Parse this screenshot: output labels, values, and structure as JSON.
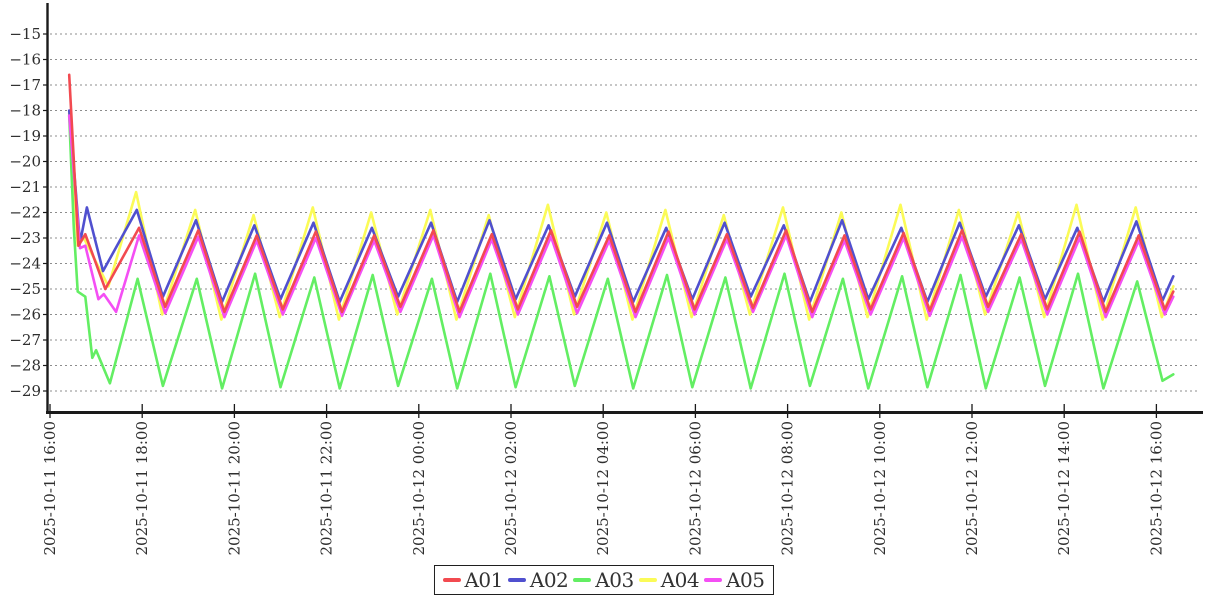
{
  "figure": {
    "background": "#ffffff",
    "axis_color": "#1a1a1a",
    "grid_color": "#8c8c8c",
    "text_color": "#2e2e2e"
  },
  "chart_data": {
    "type": "line",
    "title": "",
    "xlabel": "",
    "ylabel": "",
    "grid": "horizontal-dotted",
    "legend_position": "bottom-center",
    "x_unit": "minutes after 2025-10-11 16:00",
    "xlim_minutes": [
      0,
      1500
    ],
    "ylim": [
      -29.9,
      -13.8
    ],
    "x_ticks": [
      {
        "t": 0,
        "label": "2025-10-11 16:00"
      },
      {
        "t": 120,
        "label": "2025-10-11 18:00"
      },
      {
        "t": 240,
        "label": "2025-10-11 20:00"
      },
      {
        "t": 360,
        "label": "2025-10-11 22:00"
      },
      {
        "t": 480,
        "label": "2025-10-12 00:00"
      },
      {
        "t": 600,
        "label": "2025-10-12 02:00"
      },
      {
        "t": 720,
        "label": "2025-10-12 04:00"
      },
      {
        "t": 840,
        "label": "2025-10-12 06:00"
      },
      {
        "t": 960,
        "label": "2025-10-12 08:00"
      },
      {
        "t": 1080,
        "label": "2025-10-12 10:00"
      },
      {
        "t": 1200,
        "label": "2025-10-12 12:00"
      },
      {
        "t": 1320,
        "label": "2025-10-12 14:00"
      },
      {
        "t": 1440,
        "label": "2025-10-12 16:00"
      }
    ],
    "y_ticks": [
      {
        "v": -15,
        "label": "−15"
      },
      {
        "v": -16,
        "label": "−16"
      },
      {
        "v": -17,
        "label": "−17"
      },
      {
        "v": -18,
        "label": "−18"
      },
      {
        "v": -19,
        "label": "−19"
      },
      {
        "v": -20,
        "label": "−20"
      },
      {
        "v": -21,
        "label": "−21"
      },
      {
        "v": -22,
        "label": "−22"
      },
      {
        "v": -23,
        "label": "−23"
      },
      {
        "v": -24,
        "label": "−24"
      },
      {
        "v": -25,
        "label": "−25"
      },
      {
        "v": -26,
        "label": "−26"
      },
      {
        "v": -27,
        "label": "−27"
      },
      {
        "v": -28,
        "label": "−28"
      },
      {
        "v": -29,
        "label": "−29"
      }
    ],
    "series": [
      {
        "name": "A01",
        "color": "#f24a50",
        "points": [
          [
            25,
            -16.6
          ],
          [
            37,
            -23.3
          ],
          [
            46,
            -22.85
          ],
          [
            72,
            -25.0
          ],
          [
            116,
            -22.6
          ],
          [
            150,
            -25.7
          ],
          [
            193,
            -22.7
          ],
          [
            227,
            -25.9
          ],
          [
            269,
            -22.9
          ],
          [
            303,
            -25.8
          ],
          [
            346,
            -22.75
          ],
          [
            380,
            -25.9
          ],
          [
            422,
            -22.9
          ],
          [
            456,
            -25.7
          ],
          [
            499,
            -22.7
          ],
          [
            533,
            -25.9
          ],
          [
            575,
            -22.85
          ],
          [
            609,
            -25.8
          ],
          [
            652,
            -22.7
          ],
          [
            686,
            -25.7
          ],
          [
            728,
            -22.9
          ],
          [
            762,
            -25.9
          ],
          [
            805,
            -22.75
          ],
          [
            839,
            -25.8
          ],
          [
            881,
            -22.85
          ],
          [
            915,
            -25.75
          ],
          [
            958,
            -22.7
          ],
          [
            992,
            -25.9
          ],
          [
            1034,
            -22.9
          ],
          [
            1068,
            -25.8
          ],
          [
            1111,
            -22.8
          ],
          [
            1145,
            -25.85
          ],
          [
            1187,
            -22.7
          ],
          [
            1221,
            -25.7
          ],
          [
            1264,
            -22.85
          ],
          [
            1298,
            -25.8
          ],
          [
            1340,
            -22.75
          ],
          [
            1374,
            -25.9
          ],
          [
            1417,
            -22.9
          ],
          [
            1451,
            -25.8
          ],
          [
            1462,
            -25.1
          ]
        ]
      },
      {
        "name": "A02",
        "color": "#5050cf",
        "points": [
          [
            25,
            -18.0
          ],
          [
            39,
            -23.2
          ],
          [
            48,
            -21.8
          ],
          [
            69,
            -24.3
          ],
          [
            113,
            -21.9
          ],
          [
            147,
            -25.3
          ],
          [
            190,
            -22.3
          ],
          [
            224,
            -25.5
          ],
          [
            266,
            -22.5
          ],
          [
            300,
            -25.4
          ],
          [
            343,
            -22.4
          ],
          [
            377,
            -25.5
          ],
          [
            419,
            -22.6
          ],
          [
            453,
            -25.3
          ],
          [
            496,
            -22.4
          ],
          [
            530,
            -25.5
          ],
          [
            572,
            -22.3
          ],
          [
            606,
            -25.4
          ],
          [
            649,
            -22.5
          ],
          [
            683,
            -25.3
          ],
          [
            725,
            -22.4
          ],
          [
            759,
            -25.5
          ],
          [
            802,
            -22.6
          ],
          [
            836,
            -25.4
          ],
          [
            878,
            -22.4
          ],
          [
            912,
            -25.3
          ],
          [
            955,
            -22.5
          ],
          [
            989,
            -25.5
          ],
          [
            1031,
            -22.3
          ],
          [
            1065,
            -25.4
          ],
          [
            1108,
            -22.6
          ],
          [
            1142,
            -25.5
          ],
          [
            1184,
            -22.4
          ],
          [
            1218,
            -25.3
          ],
          [
            1261,
            -22.5
          ],
          [
            1295,
            -25.4
          ],
          [
            1337,
            -22.6
          ],
          [
            1371,
            -25.5
          ],
          [
            1414,
            -22.35
          ],
          [
            1448,
            -25.45
          ],
          [
            1462,
            -24.5
          ]
        ]
      },
      {
        "name": "A03",
        "color": "#63ee63",
        "points": [
          [
            25,
            -18.2
          ],
          [
            31,
            -22.6
          ],
          [
            36,
            -25.1
          ],
          [
            46,
            -25.3
          ],
          [
            55,
            -27.7
          ],
          [
            60,
            -27.4
          ],
          [
            78,
            -28.7
          ],
          [
            114,
            -24.6
          ],
          [
            147,
            -28.8
          ],
          [
            191,
            -24.6
          ],
          [
            224,
            -28.9
          ],
          [
            267,
            -24.4
          ],
          [
            300,
            -28.85
          ],
          [
            344,
            -24.55
          ],
          [
            377,
            -28.9
          ],
          [
            420,
            -24.45
          ],
          [
            453,
            -28.8
          ],
          [
            497,
            -24.6
          ],
          [
            530,
            -28.9
          ],
          [
            573,
            -24.4
          ],
          [
            606,
            -28.85
          ],
          [
            650,
            -24.5
          ],
          [
            683,
            -28.8
          ],
          [
            726,
            -24.6
          ],
          [
            759,
            -28.9
          ],
          [
            803,
            -24.45
          ],
          [
            836,
            -28.85
          ],
          [
            879,
            -24.55
          ],
          [
            912,
            -28.9
          ],
          [
            956,
            -24.4
          ],
          [
            989,
            -28.8
          ],
          [
            1032,
            -24.6
          ],
          [
            1065,
            -28.9
          ],
          [
            1109,
            -24.5
          ],
          [
            1142,
            -28.85
          ],
          [
            1185,
            -24.45
          ],
          [
            1218,
            -28.9
          ],
          [
            1262,
            -24.55
          ],
          [
            1295,
            -28.8
          ],
          [
            1338,
            -24.4
          ],
          [
            1371,
            -28.9
          ],
          [
            1415,
            -24.7
          ],
          [
            1448,
            -28.6
          ],
          [
            1462,
            -28.35
          ]
        ]
      },
      {
        "name": "A04",
        "color": "#fbfb57",
        "points": [
          [
            25,
            -18.1
          ],
          [
            36,
            -23.3
          ],
          [
            44,
            -23.0
          ],
          [
            76,
            -24.9
          ],
          [
            112,
            -21.2
          ],
          [
            146,
            -26.0
          ],
          [
            189,
            -21.9
          ],
          [
            223,
            -26.2
          ],
          [
            265,
            -22.1
          ],
          [
            299,
            -26.1
          ],
          [
            342,
            -21.8
          ],
          [
            376,
            -26.2
          ],
          [
            418,
            -22.0
          ],
          [
            452,
            -26.0
          ],
          [
            495,
            -21.9
          ],
          [
            529,
            -26.2
          ],
          [
            571,
            -22.1
          ],
          [
            605,
            -26.1
          ],
          [
            648,
            -21.7
          ],
          [
            682,
            -26.0
          ],
          [
            724,
            -22.0
          ],
          [
            758,
            -26.2
          ],
          [
            801,
            -21.9
          ],
          [
            835,
            -26.1
          ],
          [
            877,
            -22.1
          ],
          [
            911,
            -26.0
          ],
          [
            954,
            -21.8
          ],
          [
            988,
            -26.2
          ],
          [
            1030,
            -22.0
          ],
          [
            1064,
            -26.1
          ],
          [
            1107,
            -21.7
          ],
          [
            1141,
            -26.2
          ],
          [
            1183,
            -21.9
          ],
          [
            1217,
            -26.0
          ],
          [
            1260,
            -22.0
          ],
          [
            1294,
            -26.1
          ],
          [
            1336,
            -21.7
          ],
          [
            1370,
            -26.2
          ],
          [
            1413,
            -21.8
          ],
          [
            1447,
            -26.1
          ],
          [
            1462,
            -24.9
          ]
        ]
      },
      {
        "name": "A05",
        "color": "#f44ff4",
        "points": [
          [
            25,
            -18.2
          ],
          [
            39,
            -23.4
          ],
          [
            46,
            -23.3
          ],
          [
            63,
            -25.4
          ],
          [
            70,
            -25.2
          ],
          [
            86,
            -25.9
          ],
          [
            116,
            -22.9
          ],
          [
            150,
            -25.95
          ],
          [
            193,
            -22.95
          ],
          [
            227,
            -26.1
          ],
          [
            269,
            -23.1
          ],
          [
            303,
            -26.0
          ],
          [
            346,
            -23.0
          ],
          [
            380,
            -26.05
          ],
          [
            422,
            -23.1
          ],
          [
            456,
            -25.9
          ],
          [
            499,
            -22.9
          ],
          [
            533,
            -26.1
          ],
          [
            575,
            -23.05
          ],
          [
            609,
            -26.0
          ],
          [
            652,
            -22.95
          ],
          [
            686,
            -25.95
          ],
          [
            728,
            -23.1
          ],
          [
            762,
            -26.1
          ],
          [
            805,
            -23.0
          ],
          [
            839,
            -26.0
          ],
          [
            881,
            -23.05
          ],
          [
            915,
            -25.9
          ],
          [
            958,
            -22.9
          ],
          [
            992,
            -26.1
          ],
          [
            1034,
            -23.1
          ],
          [
            1068,
            -26.0
          ],
          [
            1111,
            -23.0
          ],
          [
            1145,
            -26.05
          ],
          [
            1187,
            -22.95
          ],
          [
            1221,
            -25.9
          ],
          [
            1264,
            -23.05
          ],
          [
            1298,
            -26.0
          ],
          [
            1340,
            -23.0
          ],
          [
            1374,
            -26.1
          ],
          [
            1417,
            -23.1
          ],
          [
            1451,
            -26.0
          ],
          [
            1462,
            -25.3
          ]
        ]
      }
    ]
  }
}
